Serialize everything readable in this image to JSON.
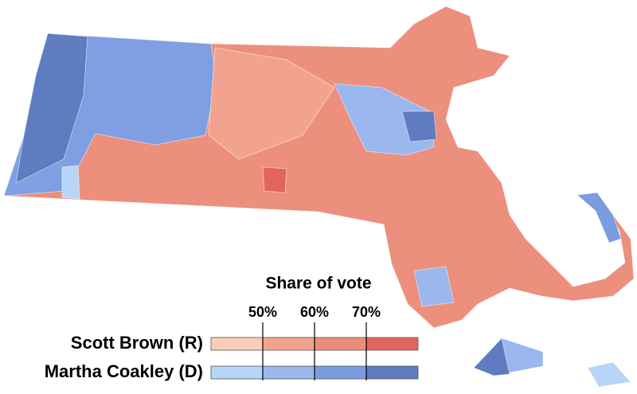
{
  "legend": {
    "title": "Share of vote",
    "ticks": [
      {
        "value": 50,
        "label": "50%"
      },
      {
        "value": 60,
        "label": "60%"
      },
      {
        "value": 70,
        "label": "70%"
      }
    ],
    "rows": [
      {
        "name": "Scott Brown (R)",
        "colors": [
          "#f9cdb8",
          "#f2a390",
          "#ec8d7b",
          "#e2655b"
        ]
      },
      {
        "name": "Martha Coakley (D)",
        "colors": [
          "#b7d6f7",
          "#9ab7ee",
          "#7c9ce0",
          "#5e7cbf"
        ]
      }
    ]
  }
}
